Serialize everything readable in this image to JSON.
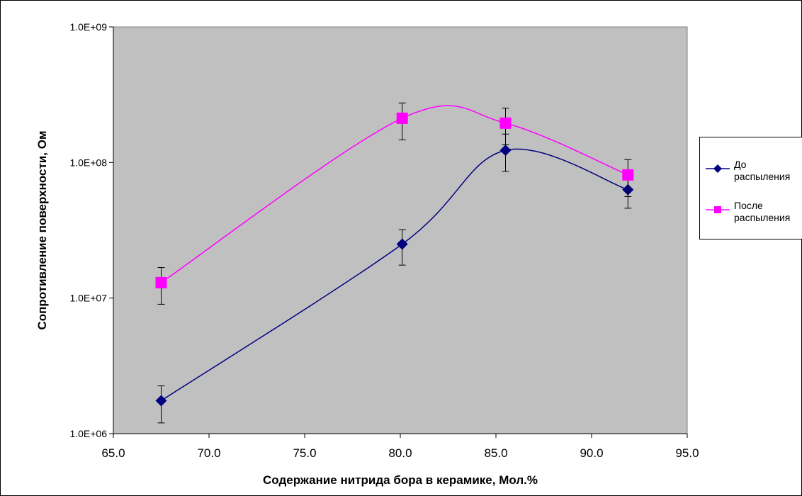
{
  "chart_data": {
    "type": "line",
    "xlabel": "Содержание нитрида бора в керамике, Мол.%",
    "ylabel": "Сопротивление поверхности, Ом",
    "xlim": [
      65.0,
      95.0
    ],
    "ylim": [
      1000000,
      1000000000
    ],
    "y_scale": "log",
    "x_ticks": [
      "65.0",
      "70.0",
      "75.0",
      "80.0",
      "85.0",
      "90.0",
      "95.0"
    ],
    "y_ticks": [
      "1.0E+06",
      "1.0E+07",
      "1.0E+08",
      "1.0E+09"
    ],
    "grid": false,
    "plot_background": "#c0c0c0",
    "legend_position": "right",
    "series": [
      {
        "name": "До распыления",
        "color": "#000080",
        "marker": "diamond",
        "x": [
          67.5,
          80.1,
          85.5,
          91.9
        ],
        "y": [
          1750000,
          25000000,
          123000000,
          63000000
        ],
        "error_low": [
          1200000,
          17500000,
          86000000,
          46000000
        ],
        "error_high": [
          2250000,
          32000000,
          162000000,
          82000000
        ]
      },
      {
        "name": "После распыления",
        "color": "#ff00ff",
        "marker": "square",
        "x": [
          67.5,
          80.1,
          85.5,
          91.9
        ],
        "y": [
          13000000,
          212000000,
          195000000,
          81000000
        ],
        "error_low": [
          9000000,
          147000000,
          136000000,
          56000000
        ],
        "error_high": [
          16800000,
          275000000,
          252000000,
          105000000
        ]
      }
    ]
  },
  "legend": {
    "items": [
      {
        "label": "До\nраспыления"
      },
      {
        "label": "После\nраспыления"
      }
    ]
  }
}
